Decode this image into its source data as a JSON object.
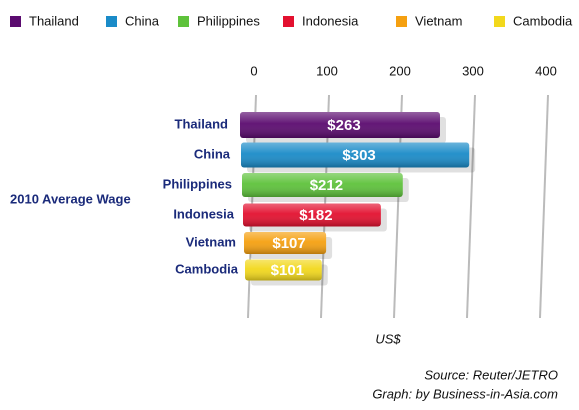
{
  "chart_data": {
    "type": "bar",
    "orientation": "horizontal",
    "categories": [
      "Thailand",
      "China",
      "Philippines",
      "Indonesia",
      "Vietnam",
      "Cambodia"
    ],
    "values": [
      263,
      303,
      212,
      182,
      107,
      101
    ],
    "value_labels": [
      "$263",
      "$303",
      "$212",
      "$182",
      "$107",
      "$101"
    ],
    "colors": [
      "#5b0b6f",
      "#1a8bc8",
      "#5ec23b",
      "#e3102f",
      "#f5a010",
      "#f2d81c"
    ],
    "y_axis_title": "2010 Average Wage",
    "x_axis_title": "US$",
    "xlim": [
      0,
      400
    ],
    "xticks": [
      0,
      100,
      200,
      300,
      400
    ],
    "grid": true,
    "legend": "top",
    "source": "Source: Reuter/JETRO",
    "credit": "Graph: by Business-in-Asia.com"
  }
}
